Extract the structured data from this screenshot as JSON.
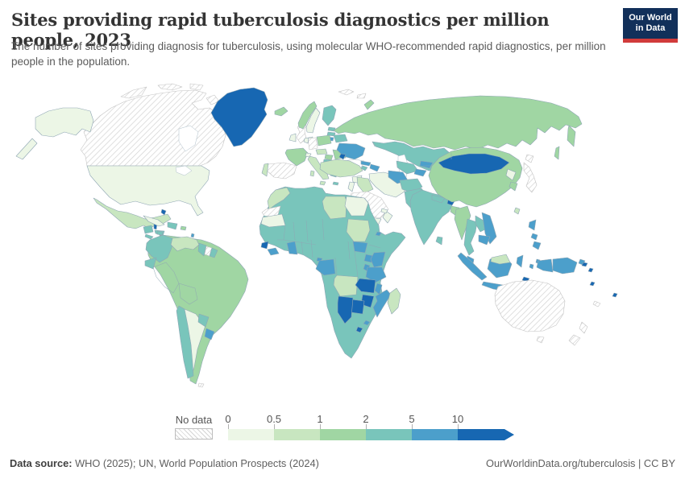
{
  "header": {
    "title": "Sites providing rapid tuberculosis diagnostics per million people, 2023",
    "subtitle": "The number of sites providing diagnosis for tuberculosis, using molecular WHO-recommended rapid diagnostics, per million people in the population.",
    "logo_line1": "Our World",
    "logo_line2": "in Data",
    "logo_bg": "#12305a",
    "logo_accent": "#d13b3b"
  },
  "legend": {
    "no_data_label": "No data"
  },
  "footer": {
    "source_label": "Data source:",
    "source_text": " WHO (2025); UN, World Population Prospects (2024)",
    "right_text": "OurWorldinData.org/tuberculosis | CC BY"
  },
  "chart_data": {
    "type": "choropleth",
    "title": "Sites providing rapid tuberculosis diagnostics per million people",
    "year": 2023,
    "scale_ticks": [
      "0",
      "0.5",
      "1",
      "2",
      "5",
      "10"
    ],
    "bins": {
      "nd": {
        "label": "No data",
        "color": "hatch"
      },
      "b0": {
        "range": "0-0.5",
        "color": "#ecf6e6"
      },
      "b1": {
        "range": "0.5-1",
        "color": "#c8e6c0"
      },
      "b2": {
        "range": "1-2",
        "color": "#a0d6a3"
      },
      "b3": {
        "range": "2-5",
        "color": "#79c5bb"
      },
      "b4": {
        "range": "5-10",
        "color": "#4c9fcb"
      },
      "b5": {
        "range": "10+",
        "color": "#1767b2"
      }
    },
    "bin_order": [
      "b0",
      "b1",
      "b2",
      "b3",
      "b4",
      "b5"
    ],
    "regions": {
      "canada": "nd",
      "united_states": "b0",
      "alaska": "b0",
      "greenland": "b5",
      "mexico": "b1",
      "guatemala": "b3",
      "belize": "b5",
      "honduras": "b3",
      "el_salvador": "b3",
      "nicaragua": "b2",
      "costa_rica": "b3",
      "panama": "b4",
      "cuba": "b0",
      "jamaica": "b3",
      "hispaniola": "b3",
      "puerto_rico": "b2",
      "bahamas": "b5",
      "lesser_antilles": "b4",
      "trinidad": "b4",
      "colombia": "b3",
      "venezuela": "b1",
      "guyana": "b3",
      "suriname": "nd",
      "french_guiana": "b3",
      "ecuador": "b3",
      "brazil_base": "b2",
      "chile": "b3",
      "argentina": "b0",
      "paraguay": "b3",
      "uruguay": "b4",
      "falklands": "nd",
      "iceland": "b2",
      "united_kingdom": "nd",
      "ireland": "b0",
      "norway": "b2",
      "sweden": "b0",
      "finland": "b3",
      "denmark": "b0",
      "estonia": "b3",
      "latvia": "b3",
      "lithuania": "b4",
      "belarus": "b3",
      "poland": "b2",
      "germany": "nd",
      "benelux": "b0",
      "france": "b2",
      "spain": "nd",
      "portugal": "b1",
      "italy": "b1",
      "sicily": "b1",
      "sardinia": "b1",
      "switzerland": "b0",
      "czech_austria": "b1",
      "hungary": "b2",
      "romania": "b2",
      "bulgaria": "b3",
      "serbia": "b3",
      "albania": "b4",
      "greece": "b3",
      "crete": "b3",
      "ukraine": "b4",
      "moldova": "b5",
      "russia": "b2",
      "kamchatka": "b2",
      "sakhalin": "b2",
      "svalbard_1": "nd",
      "svalbard_2": "nd",
      "novaya_zemlya": "b2",
      "kazakhstan": "b3",
      "georgia": "b4",
      "azerbaijan": "b4",
      "armenia": "b3",
      "turkey": "b1",
      "syria": "b0",
      "israel_jordan": "b0",
      "iraq": "b1",
      "iran": "b0",
      "saudi_arabia": "nd",
      "yemen": "b0",
      "yemen_spot": "b4",
      "oman": "b0",
      "uae": "b0",
      "turkmenistan": "b4",
      "uzbekistan": "b3",
      "kyrgyzstan": "b4",
      "tajikistan": "b4",
      "afghanistan": "b3",
      "pakistan": "b3",
      "india": "b3",
      "nepal": "b3",
      "bhutan": "b5",
      "bangladesh": "b2",
      "sri_lanka": "b3",
      "china": "b2",
      "mongolia": "b5",
      "north_korea": "b0",
      "south_korea": "b2",
      "japan": "nd",
      "hokkaido": "nd",
      "taiwan": "b1",
      "myanmar": "b2",
      "thailand": "b3",
      "laos": "b3",
      "vietnam": "b4",
      "cambodia": "b4",
      "malaysia_peninsula": "b4",
      "sumatra": "b4",
      "java": "b4",
      "kalimantan": "b4",
      "malaysia_borneo": "b1",
      "sulawesi": "b4",
      "moluccas_1": "b4",
      "moluccas_2": "b4",
      "west_papua": "b4",
      "papua_new_guinea": "b4",
      "new_britain": "b4",
      "timor": "b5",
      "philippines_luzon": "b4",
      "philippines_visayas": "b4",
      "philippines_mindanao": "b4",
      "australia": "nd",
      "tasmania": "nd",
      "new_zealand_north": "nd",
      "new_zealand_south": "nd",
      "solomon_1": "b5",
      "solomon_2": "b5",
      "vanuatu": "b5",
      "fiji": "b5",
      "new_caledonia": "nd",
      "africa_base": "b3",
      "morocco": "b1",
      "western_sahara": "nd",
      "mauritania": "b0",
      "sierra_leone": "b5",
      "liberia": "b4",
      "ghana": "b4",
      "egypt": "b0",
      "libya": "b1",
      "sudan": "b1",
      "south_sudan": "b4",
      "uganda": "b4",
      "kenya": "b4",
      "tanzania": "b4",
      "rwanda_burundi": "b4",
      "gabon_congo": "b4",
      "equatorial_guinea": "b4",
      "malawi": "b4",
      "mozambique": "b4",
      "zambia": "b5",
      "zimbabwe": "b5",
      "botswana": "b5",
      "namibia": "b5",
      "angola": "b1",
      "lesotho": "b5",
      "eswatini": "b4",
      "madagascar": "b1",
      "djibouti": "b4"
    }
  }
}
